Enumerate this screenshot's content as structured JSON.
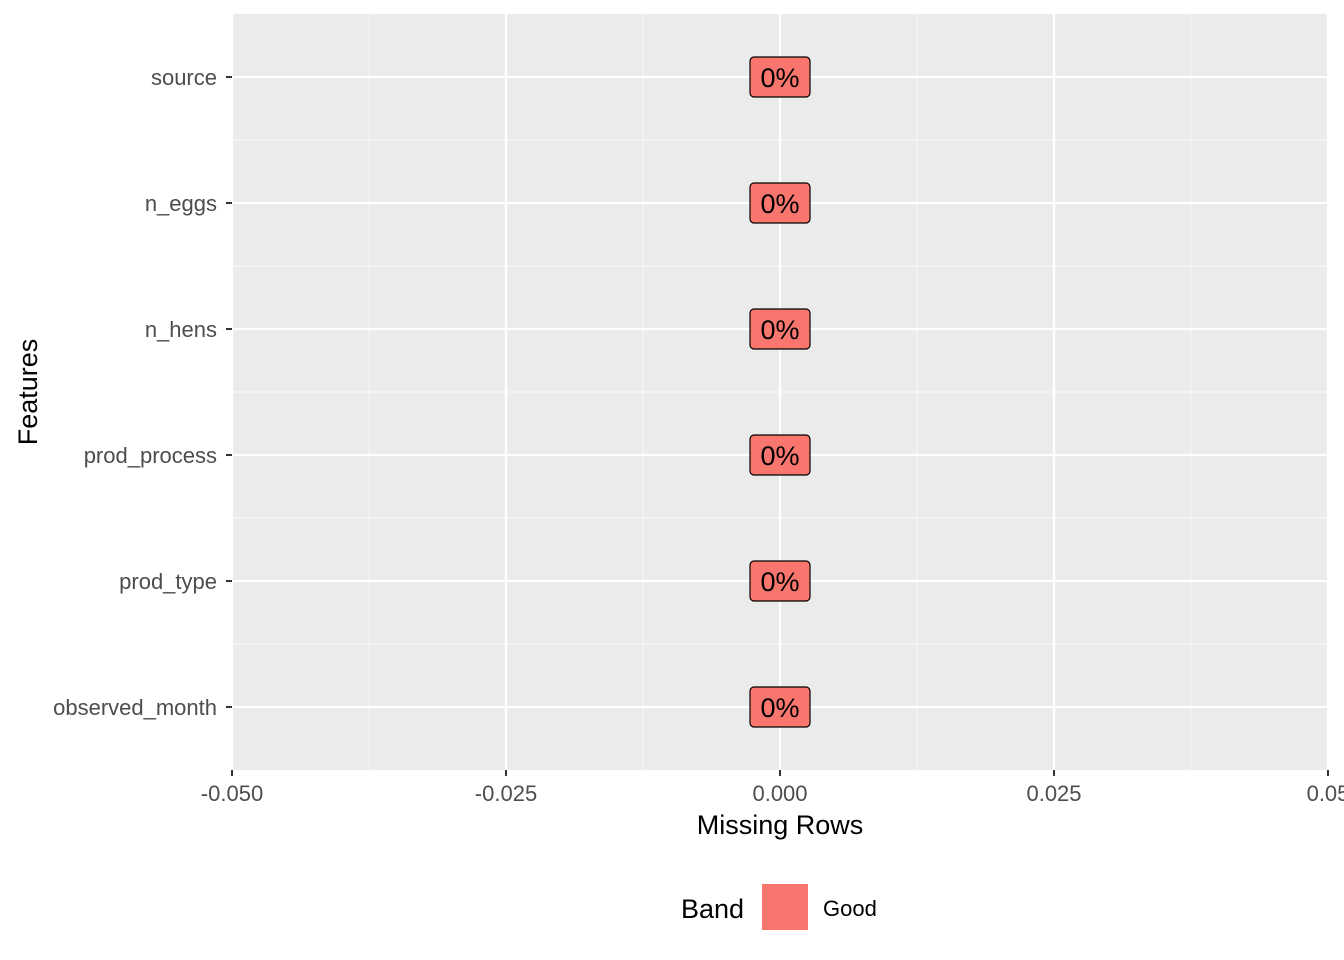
{
  "chart_data": {
    "type": "scatter",
    "xlabel": "Missing Rows",
    "ylabel": "Features",
    "xlim": [
      -0.05,
      0.05
    ],
    "x_ticks": [
      "-0.050",
      "-0.025",
      "0.000",
      "0.025",
      "0.05"
    ],
    "x_tick_values": [
      -0.05,
      -0.025,
      0.0,
      0.025,
      0.05
    ],
    "categories": [
      "source",
      "n_eggs",
      "n_hens",
      "prod_process",
      "prod_type",
      "observed_month"
    ],
    "values": [
      0,
      0,
      0,
      0,
      0,
      0
    ],
    "labels": [
      "0%",
      "0%",
      "0%",
      "0%",
      "0%",
      "0%"
    ],
    "bands": [
      "Good",
      "Good",
      "Good",
      "Good",
      "Good",
      "Good"
    ],
    "grid": true,
    "legend": {
      "title": "Band",
      "position": "bottom",
      "entries": [
        {
          "name": "Good",
          "color": "#F8766D"
        }
      ]
    },
    "colors": {
      "panel": "#EBEBEB",
      "grid_major": "#FFFFFF",
      "grid_minor": "#F5F5F5",
      "band_good": "#F8766D"
    }
  }
}
